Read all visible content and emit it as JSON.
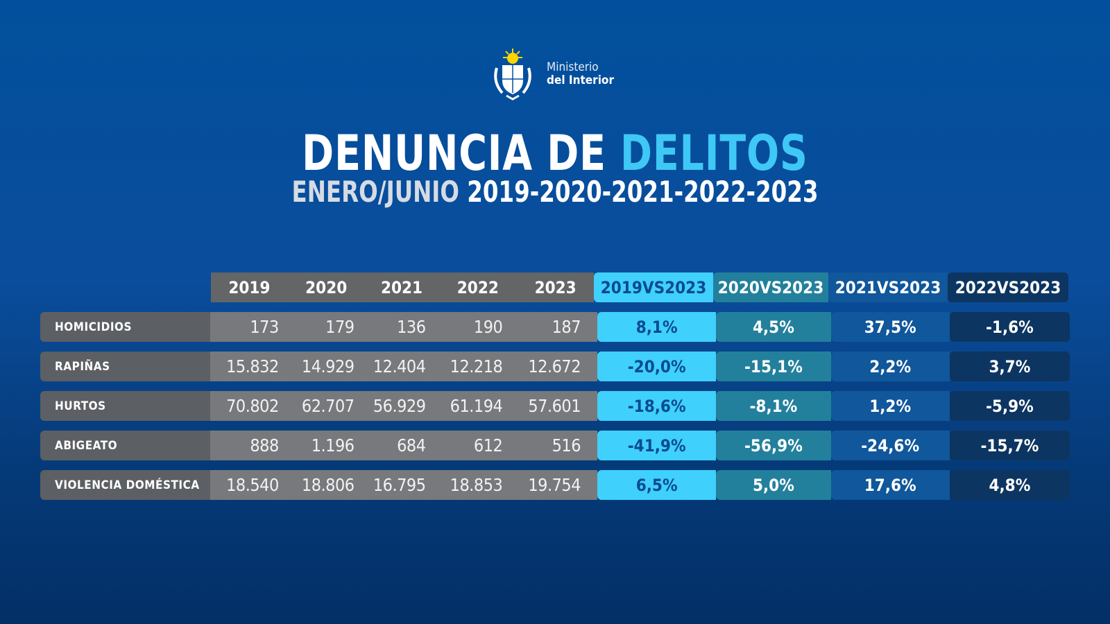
{
  "logo": {
    "icon": "uruguay-coat-of-arms-icon",
    "line1": "Ministerio",
    "line2": "del Interior"
  },
  "title": {
    "main": "DENUNCIA DE",
    "accent": "DELITOS",
    "accent_color": "#3fc8f5"
  },
  "subtitle": {
    "period": "ENERO/JUNIO",
    "years": "2019-2020-2021-2022-2023"
  },
  "colors": {
    "background_top": "#02509d",
    "background_bottom": "#032f66",
    "label_bg": "#5c5f63",
    "number_bg": "#77797c",
    "cmp1": "#3fd0fb",
    "cmp2": "#23809c",
    "cmp3": "#10579b",
    "cmp4": "#0d3561"
  },
  "chart_data": {
    "type": "table",
    "title": "DENUNCIA DE DELITOS — ENERO/JUNIO 2019-2020-2021-2022-2023",
    "columns": [
      "2019",
      "2020",
      "2021",
      "2022",
      "2023",
      "2019VS2023",
      "2020VS2023",
      "2021VS2023",
      "2022VS2023"
    ],
    "rows": [
      {
        "label": "HOMICIDIOS",
        "values": [
          "173",
          "179",
          "136",
          "190",
          "187"
        ],
        "changes": [
          "8,1%",
          "4,5%",
          "37,5%",
          "-1,6%"
        ]
      },
      {
        "label": "RAPIÑAS",
        "values": [
          "15.832",
          "14.929",
          "12.404",
          "12.218",
          "12.672"
        ],
        "changes": [
          "-20,0%",
          "-15,1%",
          "2,2%",
          "3,7%"
        ]
      },
      {
        "label": "HURTOS",
        "values": [
          "70.802",
          "62.707",
          "56.929",
          "61.194",
          "57.601"
        ],
        "changes": [
          "-18,6%",
          "-8,1%",
          "1,2%",
          "-5,9%"
        ]
      },
      {
        "label": "ABIGEATO",
        "values": [
          "888",
          "1.196",
          "684",
          "612",
          "516"
        ],
        "changes": [
          "-41,9%",
          "-56,9%",
          "-24,6%",
          "-15,7%"
        ]
      },
      {
        "label": "VIOLENCIA DOMÉSTICA",
        "values": [
          "18.540",
          "18.806",
          "16.795",
          "18.853",
          "19.754"
        ],
        "changes": [
          "6,5%",
          "5,0%",
          "17,6%",
          "4,8%"
        ]
      }
    ]
  }
}
